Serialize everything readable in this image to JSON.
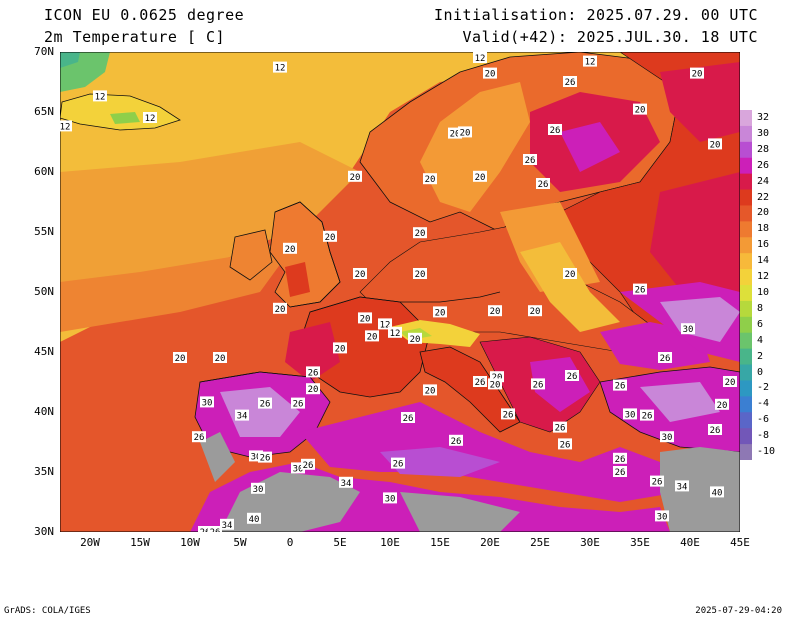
{
  "header": {
    "model": "ICON EU 0.0625 degree",
    "variable": "2m Temperature [ C]",
    "init": "Initialisation: 2025.07.29. 00 UTC",
    "valid": "Valid(+42): 2025.JUL.30. 18 UTC"
  },
  "axes": {
    "lat_labels": [
      "70N",
      "65N",
      "60N",
      "55N",
      "50N",
      "45N",
      "40N",
      "35N",
      "30N"
    ],
    "lon_labels": [
      "20W",
      "15W",
      "10W",
      "5W",
      "0",
      "5E",
      "10E",
      "15E",
      "20E",
      "25E",
      "30E",
      "35E",
      "40E",
      "45E"
    ],
    "lat_range": [
      30,
      70
    ],
    "lon_range": [
      -23,
      45
    ]
  },
  "colorbar": {
    "levels": [
      "32",
      "30",
      "28",
      "26",
      "24",
      "22",
      "20",
      "18",
      "16",
      "14",
      "12",
      "10",
      "8",
      "6",
      "4",
      "2",
      "0",
      "-2",
      "-4",
      "-6",
      "-8",
      "-10"
    ],
    "colors": [
      "#d9a6dc",
      "#c986d8",
      "#b84ed2",
      "#cc1fb8",
      "#d81a4a",
      "#dd3a1e",
      "#e5582a",
      "#ee7a30",
      "#f39a36",
      "#f7b93a",
      "#f3d23a",
      "#dde03a",
      "#b6d93c",
      "#8fcf4a",
      "#6bc46c",
      "#49b58a",
      "#37a7a6",
      "#2d98c2",
      "#3b7fd2",
      "#5a66c8",
      "#7257b8",
      "#8e78b4"
    ],
    "colors_map": {
      "sea_warm": "#dd3a1e",
      "sea_atl": "#e0542a",
      "sea_north": "#ec7a32",
      "land_hot": "#cc1fb8",
      "land_vhot": "#c986d8",
      "cool": "#f3c23a",
      "missing": "#9b9b9b",
      "ice": "#6bc46c"
    }
  },
  "contour_labels": [
    {
      "t": "12",
      "lon": -1,
      "lat": 68.7
    },
    {
      "t": "12",
      "lon": -19,
      "lat": 66.3
    },
    {
      "t": "12",
      "lon": -14,
      "lat": 64.5
    },
    {
      "t": "12",
      "lon": -22.5,
      "lat": 63.8
    },
    {
      "t": "12",
      "lon": 19,
      "lat": 69.5
    },
    {
      "t": "12",
      "lon": 30,
      "lat": 69.2
    },
    {
      "t": "20",
      "lon": 40.7,
      "lat": 68.2
    },
    {
      "t": "20",
      "lon": 20,
      "lat": 68.2
    },
    {
      "t": "26",
      "lon": 28,
      "lat": 67.5
    },
    {
      "t": "20",
      "lon": 35,
      "lat": 65.2
    },
    {
      "t": "26",
      "lon": 26.5,
      "lat": 63.5
    },
    {
      "t": "20",
      "lon": 16.5,
      "lat": 63.2
    },
    {
      "t": "20",
      "lon": 17.5,
      "lat": 63.3
    },
    {
      "t": "20",
      "lon": 42.5,
      "lat": 62.3
    },
    {
      "t": "26",
      "lon": 24,
      "lat": 61
    },
    {
      "t": "20",
      "lon": 19,
      "lat": 59.6
    },
    {
      "t": "20",
      "lon": 6.5,
      "lat": 59.6
    },
    {
      "t": "20",
      "lon": 14,
      "lat": 59.4
    },
    {
      "t": "26",
      "lon": 25.3,
      "lat": 59
    },
    {
      "t": "20",
      "lon": 4,
      "lat": 54.6
    },
    {
      "t": "20",
      "lon": 13,
      "lat": 54.9
    },
    {
      "t": "20",
      "lon": 0,
      "lat": 53.6
    },
    {
      "t": "20",
      "lon": 7,
      "lat": 51.5
    },
    {
      "t": "20",
      "lon": 13,
      "lat": 51.5
    },
    {
      "t": "20",
      "lon": 28,
      "lat": 51.5
    },
    {
      "t": "26",
      "lon": 35,
      "lat": 50.2
    },
    {
      "t": "20",
      "lon": -1,
      "lat": 48.6
    },
    {
      "t": "20",
      "lon": 15,
      "lat": 48.3
    },
    {
      "t": "20",
      "lon": 20.5,
      "lat": 48.4
    },
    {
      "t": "20",
      "lon": 24.5,
      "lat": 48.4
    },
    {
      "t": "20",
      "lon": 7.5,
      "lat": 47.8
    },
    {
      "t": "12",
      "lon": 9.5,
      "lat": 47.3
    },
    {
      "t": "12",
      "lon": 10.5,
      "lat": 46.6
    },
    {
      "t": "20",
      "lon": 8.2,
      "lat": 46.3
    },
    {
      "t": "20",
      "lon": 12.5,
      "lat": 46.1
    },
    {
      "t": "20",
      "lon": 5,
      "lat": 45.3
    },
    {
      "t": "30",
      "lon": 39.8,
      "lat": 46.9
    },
    {
      "t": "26",
      "lon": 37.5,
      "lat": 44.5
    },
    {
      "t": "20",
      "lon": -11,
      "lat": 44.5
    },
    {
      "t": "20",
      "lon": -7,
      "lat": 44.5
    },
    {
      "t": "26",
      "lon": 2.3,
      "lat": 43.3
    },
    {
      "t": "20",
      "lon": 2.3,
      "lat": 41.9
    },
    {
      "t": "20",
      "lon": 20.7,
      "lat": 42.9
    },
    {
      "t": "26",
      "lon": 28.2,
      "lat": 43
    },
    {
      "t": "26",
      "lon": 19,
      "lat": 42.5
    },
    {
      "t": "20",
      "lon": 20.5,
      "lat": 42.3
    },
    {
      "t": "26",
      "lon": 24.8,
      "lat": 42.3
    },
    {
      "t": "20",
      "lon": 14,
      "lat": 41.8
    },
    {
      "t": "26",
      "lon": 33,
      "lat": 42.2
    },
    {
      "t": "20",
      "lon": 44,
      "lat": 42.5
    },
    {
      "t": "30",
      "lon": -8.3,
      "lat": 40.8
    },
    {
      "t": "26",
      "lon": -2.5,
      "lat": 40.7
    },
    {
      "t": "26",
      "lon": 0.8,
      "lat": 40.7
    },
    {
      "t": "34",
      "lon": -4.8,
      "lat": 39.7
    },
    {
      "t": "26",
      "lon": 11.8,
      "lat": 39.5
    },
    {
      "t": "26",
      "lon": 21.8,
      "lat": 39.8
    },
    {
      "t": "30",
      "lon": 34,
      "lat": 39.8
    },
    {
      "t": "26",
      "lon": 35.7,
      "lat": 39.7
    },
    {
      "t": "20",
      "lon": 43.2,
      "lat": 40.6
    },
    {
      "t": "26",
      "lon": 27,
      "lat": 38.7
    },
    {
      "t": "26",
      "lon": -9.1,
      "lat": 37.9
    },
    {
      "t": "26",
      "lon": 16.6,
      "lat": 37.6
    },
    {
      "t": "26",
      "lon": 27.5,
      "lat": 37.3
    },
    {
      "t": "30",
      "lon": 37.7,
      "lat": 37.9
    },
    {
      "t": "26",
      "lon": 42.5,
      "lat": 38.5
    },
    {
      "t": "30",
      "lon": -3.4,
      "lat": 36.3
    },
    {
      "t": "26",
      "lon": -2.5,
      "lat": 36.2
    },
    {
      "t": "26",
      "lon": 33,
      "lat": 36.1
    },
    {
      "t": "30",
      "lon": 0.8,
      "lat": 35.3
    },
    {
      "t": "26",
      "lon": 1.8,
      "lat": 35.6
    },
    {
      "t": "26",
      "lon": 10.8,
      "lat": 35.7
    },
    {
      "t": "26",
      "lon": 33,
      "lat": 35
    },
    {
      "t": "34",
      "lon": 5.6,
      "lat": 34.1
    },
    {
      "t": "26",
      "lon": 36.7,
      "lat": 34.2
    },
    {
      "t": "34",
      "lon": 39.2,
      "lat": 33.8
    },
    {
      "t": "30",
      "lon": -3.2,
      "lat": 33.6
    },
    {
      "t": "40",
      "lon": 42.7,
      "lat": 33.3
    },
    {
      "t": "30",
      "lon": 10,
      "lat": 32.8
    },
    {
      "t": "30",
      "lon": 37.2,
      "lat": 31.3
    },
    {
      "t": "40",
      "lon": -3.6,
      "lat": 31.1
    },
    {
      "t": "34",
      "lon": -6.3,
      "lat": 30.6
    },
    {
      "t": "26",
      "lon": -8.5,
      "lat": 30
    },
    {
      "t": "26",
      "lon": -7.5,
      "lat": 30
    }
  ],
  "footer": {
    "left": "GrADS: COLA/IGES",
    "right": "2025-07-29-04:20"
  }
}
